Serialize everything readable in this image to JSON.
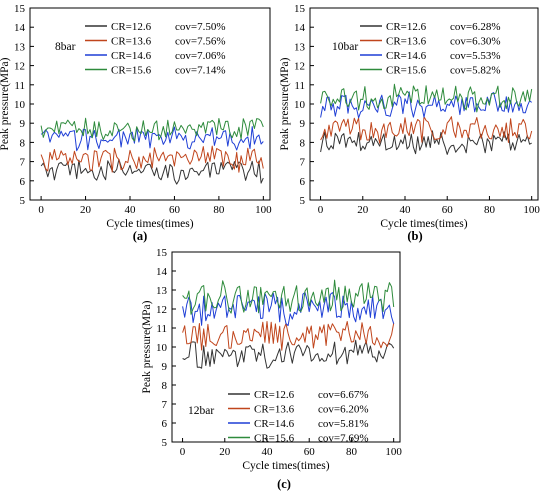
{
  "chart_data": [
    {
      "type": "line",
      "panel_label": "(a)",
      "condition_label": "8bar",
      "xlabel": "Cycle times(times)",
      "ylabel": "Peak pressure(MPa)",
      "xlim": [
        -5,
        103
      ],
      "ylim": [
        5,
        15
      ],
      "xticks": [
        0,
        20,
        40,
        60,
        80,
        100
      ],
      "yticks": [
        5,
        6,
        7,
        8,
        9,
        10,
        11,
        12,
        13,
        14,
        15
      ],
      "legend_position": "top-right",
      "series": [
        {
          "name": "CR=12.6",
          "cov": "cov=7.50%",
          "color": "#333333",
          "mean": 6.5,
          "amp": 0.55
        },
        {
          "name": "CR=13.6",
          "cov": "cov=7.56%",
          "color": "#c0451c",
          "mean": 7.1,
          "amp": 0.6
        },
        {
          "name": "CR=14.6",
          "cov": "cov=7.06%",
          "color": "#1f3fd6",
          "mean": 8.2,
          "amp": 0.55
        },
        {
          "name": "CR=15.6",
          "cov": "cov=7.14%",
          "color": "#2e8b3c",
          "mean": 8.7,
          "amp": 0.5
        }
      ]
    },
    {
      "type": "line",
      "panel_label": "(b)",
      "condition_label": "10bar",
      "xlabel": "Cycle times(times)",
      "ylabel": "Peak pressure(MPa)",
      "xlim": [
        -5,
        103
      ],
      "ylim": [
        5,
        15
      ],
      "xticks": [
        0,
        20,
        40,
        60,
        80,
        100
      ],
      "yticks": [
        5,
        6,
        7,
        8,
        9,
        10,
        11,
        12,
        13,
        14,
        15
      ],
      "legend_position": "top-right",
      "series": [
        {
          "name": "CR=12.6",
          "cov": "cov=6.28%",
          "color": "#333333",
          "mean": 8.0,
          "amp": 0.55
        },
        {
          "name": "CR=13.6",
          "cov": "cov=6.30%",
          "color": "#c0451c",
          "mean": 8.7,
          "amp": 0.6
        },
        {
          "name": "CR=14.6",
          "cov": "cov=5.53%",
          "color": "#1f3fd6",
          "mean": 9.9,
          "amp": 0.6
        },
        {
          "name": "CR=15.6",
          "cov": "cov=5.82%",
          "color": "#2e8b3c",
          "mean": 10.3,
          "amp": 0.6
        }
      ]
    },
    {
      "type": "line",
      "panel_label": "(c)",
      "condition_label": "12bar",
      "xlabel": "Cycle times(times)",
      "ylabel": "Peak pressure(MPa)",
      "xlim": [
        -5,
        103
      ],
      "ylim": [
        5,
        15
      ],
      "xticks": [
        0,
        20,
        40,
        60,
        80,
        100
      ],
      "yticks": [
        5,
        6,
        7,
        8,
        9,
        10,
        11,
        12,
        13,
        14,
        15
      ],
      "legend_position": "bottom-right",
      "series": [
        {
          "name": "CR=12.6",
          "cov": "cov=6.67%",
          "color": "#333333",
          "mean": 9.6,
          "amp": 0.65
        },
        {
          "name": "CR=13.6",
          "cov": "cov=6.20%",
          "color": "#c0451c",
          "mean": 10.6,
          "amp": 0.65
        },
        {
          "name": "CR=14.6",
          "cov": "cov=5.81%",
          "color": "#1f3fd6",
          "mean": 12.0,
          "amp": 0.7
        },
        {
          "name": "CR=15.6",
          "cov": "cov=7.69%",
          "color": "#2e8b3c",
          "mean": 12.6,
          "amp": 0.8
        }
      ]
    }
  ]
}
